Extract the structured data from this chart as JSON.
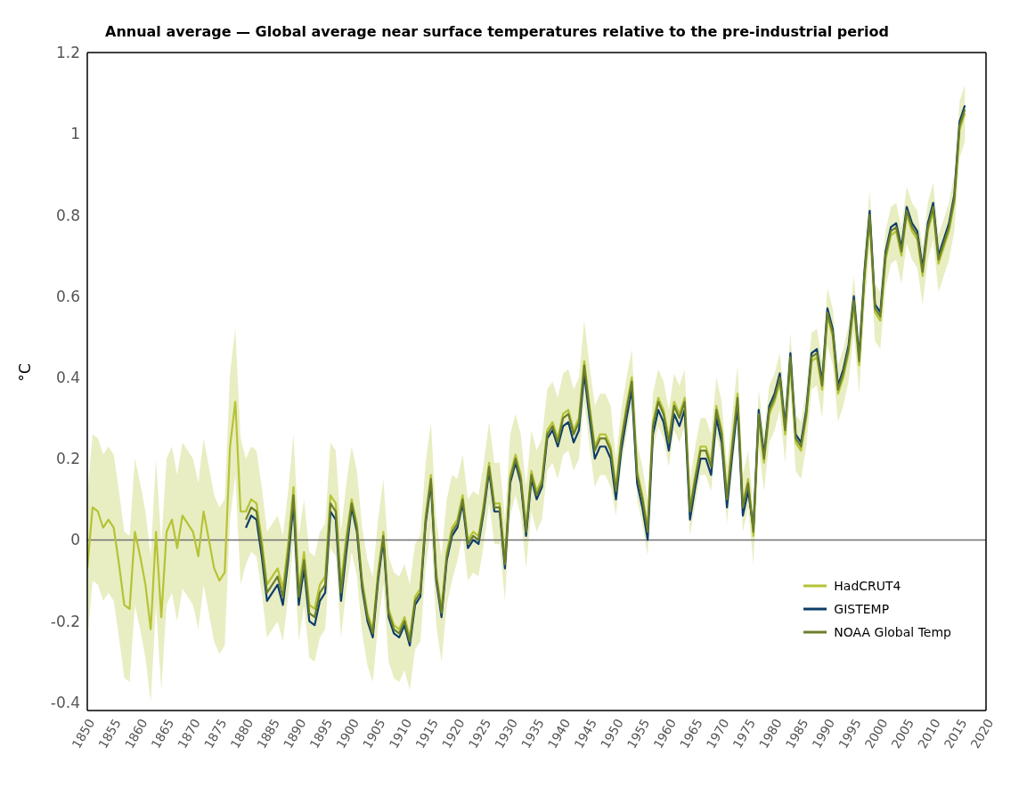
{
  "chart_data": {
    "type": "line",
    "title": "Annual average — Global average near surface temperatures relative to the pre-industrial period",
    "ylabel": "°C",
    "x": [
      1850,
      1851,
      1852,
      1853,
      1854,
      1855,
      1856,
      1857,
      1858,
      1859,
      1860,
      1861,
      1862,
      1863,
      1864,
      1865,
      1866,
      1867,
      1868,
      1869,
      1870,
      1871,
      1872,
      1873,
      1874,
      1875,
      1876,
      1877,
      1878,
      1879,
      1880,
      1881,
      1882,
      1883,
      1884,
      1885,
      1886,
      1887,
      1888,
      1889,
      1890,
      1891,
      1892,
      1893,
      1894,
      1895,
      1896,
      1897,
      1898,
      1899,
      1900,
      1901,
      1902,
      1903,
      1904,
      1905,
      1906,
      1907,
      1908,
      1909,
      1910,
      1911,
      1912,
      1913,
      1914,
      1915,
      1916,
      1917,
      1918,
      1919,
      1920,
      1921,
      1922,
      1923,
      1924,
      1925,
      1926,
      1927,
      1928,
      1929,
      1930,
      1931,
      1932,
      1933,
      1934,
      1935,
      1936,
      1937,
      1938,
      1939,
      1940,
      1941,
      1942,
      1943,
      1944,
      1945,
      1946,
      1947,
      1948,
      1949,
      1950,
      1951,
      1952,
      1953,
      1954,
      1955,
      1956,
      1957,
      1958,
      1959,
      1960,
      1961,
      1962,
      1963,
      1964,
      1965,
      1966,
      1967,
      1968,
      1969,
      1970,
      1971,
      1972,
      1973,
      1974,
      1975,
      1976,
      1977,
      1978,
      1979,
      1980,
      1981,
      1982,
      1983,
      1984,
      1985,
      1986,
      1987,
      1988,
      1989,
      1990,
      1991,
      1992,
      1993,
      1994,
      1995,
      1996,
      1997,
      1998,
      1999,
      2000,
      2001,
      2002,
      2003,
      2004,
      2005,
      2006,
      2007,
      2008,
      2009,
      2010,
      2011,
      2012,
      2013,
      2014,
      2015,
      2016
    ],
    "series": [
      {
        "name": "HadCRUT4",
        "color": "#b5c334",
        "values": [
          -0.07,
          0.08,
          0.07,
          0.03,
          0.05,
          0.03,
          -0.06,
          -0.16,
          -0.17,
          0.02,
          -0.04,
          -0.11,
          -0.22,
          0.02,
          -0.19,
          0.02,
          0.05,
          -0.02,
          0.06,
          0.04,
          0.02,
          -0.04,
          0.07,
          0.0,
          -0.07,
          -0.1,
          -0.08,
          0.23,
          0.34,
          0.07,
          0.07,
          0.1,
          0.09,
          0.0,
          -0.11,
          -0.09,
          -0.07,
          -0.12,
          -0.01,
          0.13,
          -0.12,
          -0.03,
          -0.16,
          -0.17,
          -0.11,
          -0.09,
          0.11,
          0.09,
          -0.11,
          0.01,
          0.1,
          0.04,
          -0.1,
          -0.18,
          -0.22,
          -0.08,
          0.02,
          -0.17,
          -0.21,
          -0.22,
          -0.19,
          -0.24,
          -0.14,
          -0.12,
          0.06,
          0.16,
          -0.08,
          -0.17,
          -0.03,
          0.03,
          0.05,
          0.11,
          0.0,
          0.02,
          0.01,
          0.09,
          0.19,
          0.09,
          0.09,
          -0.05,
          0.16,
          0.21,
          0.16,
          0.03,
          0.17,
          0.12,
          0.15,
          0.27,
          0.29,
          0.25,
          0.31,
          0.32,
          0.27,
          0.3,
          0.44,
          0.33,
          0.23,
          0.26,
          0.26,
          0.23,
          0.13,
          0.25,
          0.33,
          0.4,
          0.17,
          0.11,
          0.03,
          0.29,
          0.35,
          0.32,
          0.25,
          0.34,
          0.31,
          0.35,
          0.08,
          0.16,
          0.23,
          0.23,
          0.19,
          0.33,
          0.27,
          0.11,
          0.24,
          0.36,
          0.09,
          0.15,
          0.01,
          0.3,
          0.19,
          0.31,
          0.34,
          0.39,
          0.26,
          0.44,
          0.24,
          0.22,
          0.3,
          0.44,
          0.45,
          0.37,
          0.55,
          0.5,
          0.36,
          0.4,
          0.46,
          0.58,
          0.43,
          0.64,
          0.79,
          0.56,
          0.54,
          0.69,
          0.75,
          0.76,
          0.7,
          0.8,
          0.76,
          0.74,
          0.65,
          0.76,
          0.81,
          0.68,
          0.72,
          0.76,
          0.83,
          1.01,
          1.05
        ],
        "upper": [
          0.11,
          0.26,
          0.25,
          0.21,
          0.23,
          0.21,
          0.12,
          0.02,
          0.01,
          0.2,
          0.14,
          0.07,
          -0.04,
          0.2,
          -0.01,
          0.2,
          0.23,
          0.16,
          0.24,
          0.22,
          0.2,
          0.14,
          0.25,
          0.18,
          0.11,
          0.08,
          0.1,
          0.41,
          0.52,
          0.25,
          0.2,
          0.23,
          0.22,
          0.13,
          0.02,
          0.04,
          0.06,
          0.01,
          0.12,
          0.26,
          0.01,
          0.1,
          -0.03,
          -0.04,
          0.02,
          0.04,
          0.24,
          0.22,
          0.02,
          0.14,
          0.23,
          0.17,
          0.03,
          -0.05,
          -0.09,
          0.05,
          0.15,
          -0.04,
          -0.08,
          -0.09,
          -0.06,
          -0.11,
          -0.01,
          0.01,
          0.19,
          0.29,
          0.05,
          -0.04,
          0.1,
          0.16,
          0.15,
          0.21,
          0.1,
          0.12,
          0.11,
          0.19,
          0.29,
          0.19,
          0.19,
          0.05,
          0.26,
          0.31,
          0.26,
          0.13,
          0.27,
          0.22,
          0.25,
          0.37,
          0.39,
          0.35,
          0.41,
          0.42,
          0.37,
          0.4,
          0.54,
          0.43,
          0.33,
          0.36,
          0.36,
          0.33,
          0.2,
          0.32,
          0.4,
          0.47,
          0.24,
          0.18,
          0.1,
          0.36,
          0.42,
          0.39,
          0.32,
          0.41,
          0.38,
          0.42,
          0.15,
          0.23,
          0.3,
          0.3,
          0.26,
          0.4,
          0.34,
          0.18,
          0.31,
          0.43,
          0.16,
          0.22,
          0.08,
          0.37,
          0.26,
          0.38,
          0.41,
          0.46,
          0.33,
          0.51,
          0.31,
          0.29,
          0.37,
          0.51,
          0.52,
          0.44,
          0.62,
          0.57,
          0.43,
          0.47,
          0.53,
          0.65,
          0.5,
          0.71,
          0.86,
          0.63,
          0.61,
          0.76,
          0.82,
          0.83,
          0.77,
          0.87,
          0.83,
          0.81,
          0.72,
          0.83,
          0.88,
          0.75,
          0.79,
          0.83,
          0.9,
          1.08,
          1.12
        ],
        "lower": [
          -0.25,
          -0.1,
          -0.11,
          -0.15,
          -0.13,
          -0.15,
          -0.24,
          -0.34,
          -0.35,
          -0.16,
          -0.22,
          -0.29,
          -0.4,
          -0.16,
          -0.37,
          -0.16,
          -0.13,
          -0.2,
          -0.12,
          -0.14,
          -0.16,
          -0.22,
          -0.11,
          -0.18,
          -0.25,
          -0.28,
          -0.26,
          0.05,
          0.16,
          -0.11,
          -0.06,
          -0.03,
          -0.04,
          -0.13,
          -0.24,
          -0.22,
          -0.2,
          -0.25,
          -0.14,
          0.0,
          -0.25,
          -0.16,
          -0.29,
          -0.3,
          -0.24,
          -0.22,
          -0.02,
          -0.04,
          -0.24,
          -0.12,
          -0.03,
          -0.09,
          -0.23,
          -0.31,
          -0.35,
          -0.21,
          -0.11,
          -0.3,
          -0.34,
          -0.35,
          -0.32,
          -0.37,
          -0.27,
          -0.25,
          -0.07,
          0.03,
          -0.21,
          -0.3,
          -0.16,
          -0.1,
          -0.05,
          0.01,
          -0.1,
          -0.08,
          -0.09,
          -0.01,
          0.09,
          -0.01,
          -0.01,
          -0.15,
          0.06,
          0.11,
          0.06,
          -0.07,
          0.07,
          0.02,
          0.05,
          0.17,
          0.19,
          0.15,
          0.21,
          0.22,
          0.17,
          0.2,
          0.34,
          0.23,
          0.13,
          0.16,
          0.16,
          0.13,
          0.06,
          0.18,
          0.26,
          0.33,
          0.1,
          0.04,
          -0.04,
          0.22,
          0.28,
          0.25,
          0.18,
          0.27,
          0.24,
          0.28,
          0.01,
          0.09,
          0.16,
          0.16,
          0.12,
          0.26,
          0.2,
          0.04,
          0.17,
          0.29,
          0.02,
          0.08,
          -0.06,
          0.23,
          0.12,
          0.24,
          0.27,
          0.32,
          0.19,
          0.37,
          0.17,
          0.15,
          0.23,
          0.37,
          0.38,
          0.3,
          0.48,
          0.43,
          0.29,
          0.33,
          0.39,
          0.51,
          0.36,
          0.57,
          0.72,
          0.49,
          0.47,
          0.62,
          0.68,
          0.69,
          0.63,
          0.73,
          0.69,
          0.67,
          0.58,
          0.69,
          0.74,
          0.61,
          0.65,
          0.69,
          0.76,
          0.94,
          0.98
        ]
      },
      {
        "name": "GISTEMP",
        "color": "#0d3d6b",
        "values": [
          null,
          null,
          null,
          null,
          null,
          null,
          null,
          null,
          null,
          null,
          null,
          null,
          null,
          null,
          null,
          null,
          null,
          null,
          null,
          null,
          null,
          null,
          null,
          null,
          null,
          null,
          null,
          null,
          null,
          null,
          0.03,
          0.06,
          0.05,
          -0.04,
          -0.15,
          -0.13,
          -0.11,
          -0.16,
          -0.05,
          0.09,
          -0.16,
          -0.07,
          -0.2,
          -0.21,
          -0.15,
          -0.13,
          0.07,
          0.05,
          -0.15,
          -0.03,
          0.08,
          0.02,
          -0.12,
          -0.2,
          -0.24,
          -0.1,
          0.0,
          -0.19,
          -0.23,
          -0.24,
          -0.21,
          -0.26,
          -0.16,
          -0.14,
          0.04,
          0.14,
          -0.1,
          -0.19,
          -0.05,
          0.01,
          0.03,
          0.09,
          -0.02,
          0.0,
          -0.01,
          0.07,
          0.17,
          0.07,
          0.07,
          -0.07,
          0.14,
          0.19,
          0.14,
          0.01,
          0.15,
          0.1,
          0.13,
          0.25,
          0.27,
          0.23,
          0.28,
          0.29,
          0.24,
          0.27,
          0.41,
          0.3,
          0.2,
          0.23,
          0.23,
          0.2,
          0.1,
          0.22,
          0.3,
          0.37,
          0.14,
          0.08,
          0.0,
          0.26,
          0.32,
          0.29,
          0.22,
          0.31,
          0.28,
          0.32,
          0.05,
          0.13,
          0.2,
          0.2,
          0.16,
          0.3,
          0.24,
          0.08,
          0.21,
          0.33,
          0.06,
          0.12,
          0.03,
          0.32,
          0.21,
          0.33,
          0.36,
          0.41,
          0.28,
          0.46,
          0.26,
          0.24,
          0.32,
          0.46,
          0.47,
          0.39,
          0.57,
          0.52,
          0.38,
          0.42,
          0.48,
          0.6,
          0.45,
          0.66,
          0.81,
          0.58,
          0.56,
          0.71,
          0.77,
          0.78,
          0.72,
          0.82,
          0.78,
          0.76,
          0.67,
          0.78,
          0.83,
          0.7,
          0.74,
          0.78,
          0.85,
          1.03,
          1.07
        ]
      },
      {
        "name": "NOAA Global Temp",
        "color": "#6b7f2a",
        "values": [
          null,
          null,
          null,
          null,
          null,
          null,
          null,
          null,
          null,
          null,
          null,
          null,
          null,
          null,
          null,
          null,
          null,
          null,
          null,
          null,
          null,
          null,
          null,
          null,
          null,
          null,
          null,
          null,
          null,
          null,
          0.05,
          0.08,
          0.07,
          -0.02,
          -0.13,
          -0.11,
          -0.09,
          -0.14,
          -0.03,
          0.11,
          -0.14,
          -0.05,
          -0.18,
          -0.19,
          -0.13,
          -0.11,
          0.09,
          0.07,
          -0.13,
          -0.01,
          0.09,
          0.03,
          -0.11,
          -0.19,
          -0.23,
          -0.09,
          0.01,
          -0.18,
          -0.22,
          -0.23,
          -0.2,
          -0.25,
          -0.15,
          -0.13,
          0.05,
          0.15,
          -0.09,
          -0.18,
          -0.04,
          0.02,
          0.04,
          0.1,
          -0.01,
          0.01,
          0.0,
          0.08,
          0.18,
          0.08,
          0.08,
          -0.06,
          0.15,
          0.2,
          0.15,
          0.02,
          0.16,
          0.11,
          0.14,
          0.26,
          0.28,
          0.24,
          0.3,
          0.31,
          0.26,
          0.29,
          0.43,
          0.32,
          0.22,
          0.25,
          0.25,
          0.22,
          0.12,
          0.24,
          0.32,
          0.39,
          0.16,
          0.1,
          0.02,
          0.28,
          0.34,
          0.31,
          0.24,
          0.33,
          0.3,
          0.34,
          0.07,
          0.15,
          0.22,
          0.22,
          0.18,
          0.32,
          0.26,
          0.1,
          0.23,
          0.35,
          0.08,
          0.14,
          0.02,
          0.31,
          0.2,
          0.32,
          0.35,
          0.4,
          0.27,
          0.45,
          0.25,
          0.23,
          0.31,
          0.45,
          0.46,
          0.38,
          0.56,
          0.51,
          0.37,
          0.41,
          0.47,
          0.59,
          0.44,
          0.65,
          0.8,
          0.57,
          0.55,
          0.7,
          0.76,
          0.77,
          0.71,
          0.81,
          0.77,
          0.75,
          0.66,
          0.77,
          0.82,
          0.69,
          0.73,
          0.77,
          0.84,
          1.02,
          1.06
        ]
      }
    ],
    "xlim": [
      1850,
      2020
    ],
    "xticks": [
      1850,
      1855,
      1860,
      1865,
      1870,
      1875,
      1880,
      1885,
      1890,
      1895,
      1900,
      1905,
      1910,
      1915,
      1920,
      1925,
      1930,
      1935,
      1940,
      1945,
      1950,
      1955,
      1960,
      1965,
      1970,
      1975,
      1980,
      1985,
      1990,
      1995,
      2000,
      2005,
      2010,
      2015,
      2020
    ],
    "ylim": [
      -0.42,
      1.2
    ],
    "yticks": [
      -0.4,
      -0.2,
      0,
      0.2,
      0.4,
      0.6,
      0.8,
      1,
      1.2
    ],
    "ref_lines": [
      {
        "axis": "y",
        "value": 0,
        "color": "#707070"
      }
    ],
    "legend": "bottom right"
  }
}
